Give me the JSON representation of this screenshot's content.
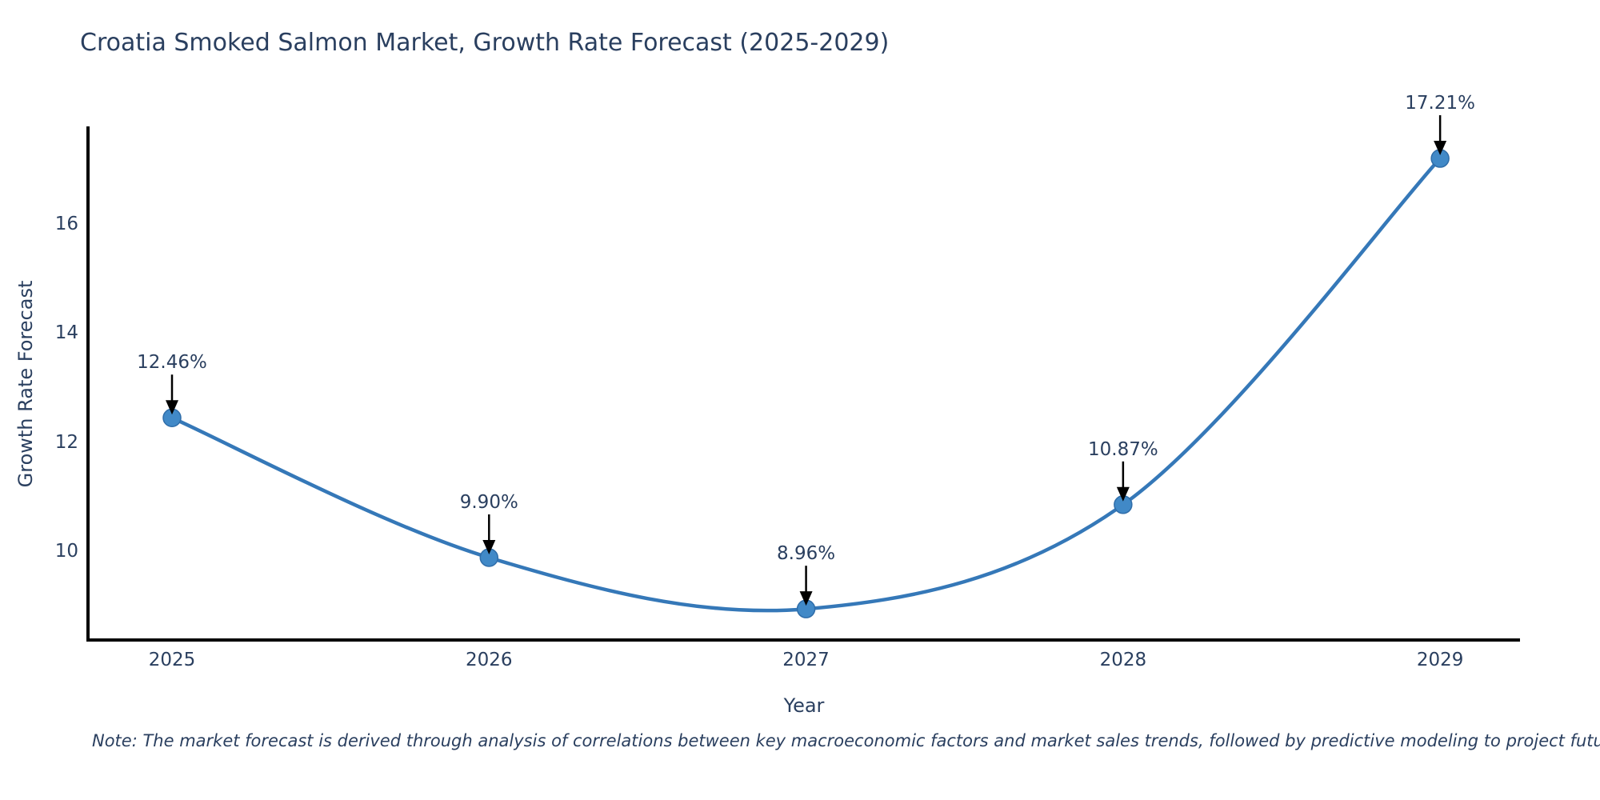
{
  "title": "Croatia Smoked Salmon Market, Growth Rate Forecast (2025-2029)",
  "note": "Note: The market forecast is derived through analysis of correlations between key macroeconomic factors and market sales trends, followed by predictive modeling to project future sales",
  "chart_data": {
    "type": "line",
    "title": "Croatia Smoked Salmon Market, Growth Rate Forecast (2025-2029)",
    "xlabel": "Year",
    "ylabel": "Growth Rate Forecast",
    "x": [
      2025,
      2026,
      2027,
      2028,
      2029
    ],
    "values": [
      12.46,
      9.9,
      8.96,
      10.87,
      17.21
    ],
    "point_labels": [
      "12.46%",
      "9.90%",
      "8.96%",
      "10.87%",
      "17.21%"
    ],
    "x_tick_labels": [
      "2025",
      "2026",
      "2027",
      "2028",
      "2029"
    ],
    "y_ticks": [
      10,
      12,
      14,
      16
    ],
    "y_tick_labels": [
      "10",
      "12",
      "14",
      "16"
    ],
    "xlim": [
      2024.735,
      2029.252
    ],
    "ylim": [
      8.391,
      17.767
    ],
    "grid": false,
    "legend": "none",
    "curve": "spline",
    "line_color": "#3578b8",
    "marker_fill": "#4189c7",
    "marker_edge": "#2f6da9",
    "axis_color": "#000000",
    "arrow_color": "#000000",
    "text_color": "#2a3f5f",
    "background": "#ffffff"
  }
}
